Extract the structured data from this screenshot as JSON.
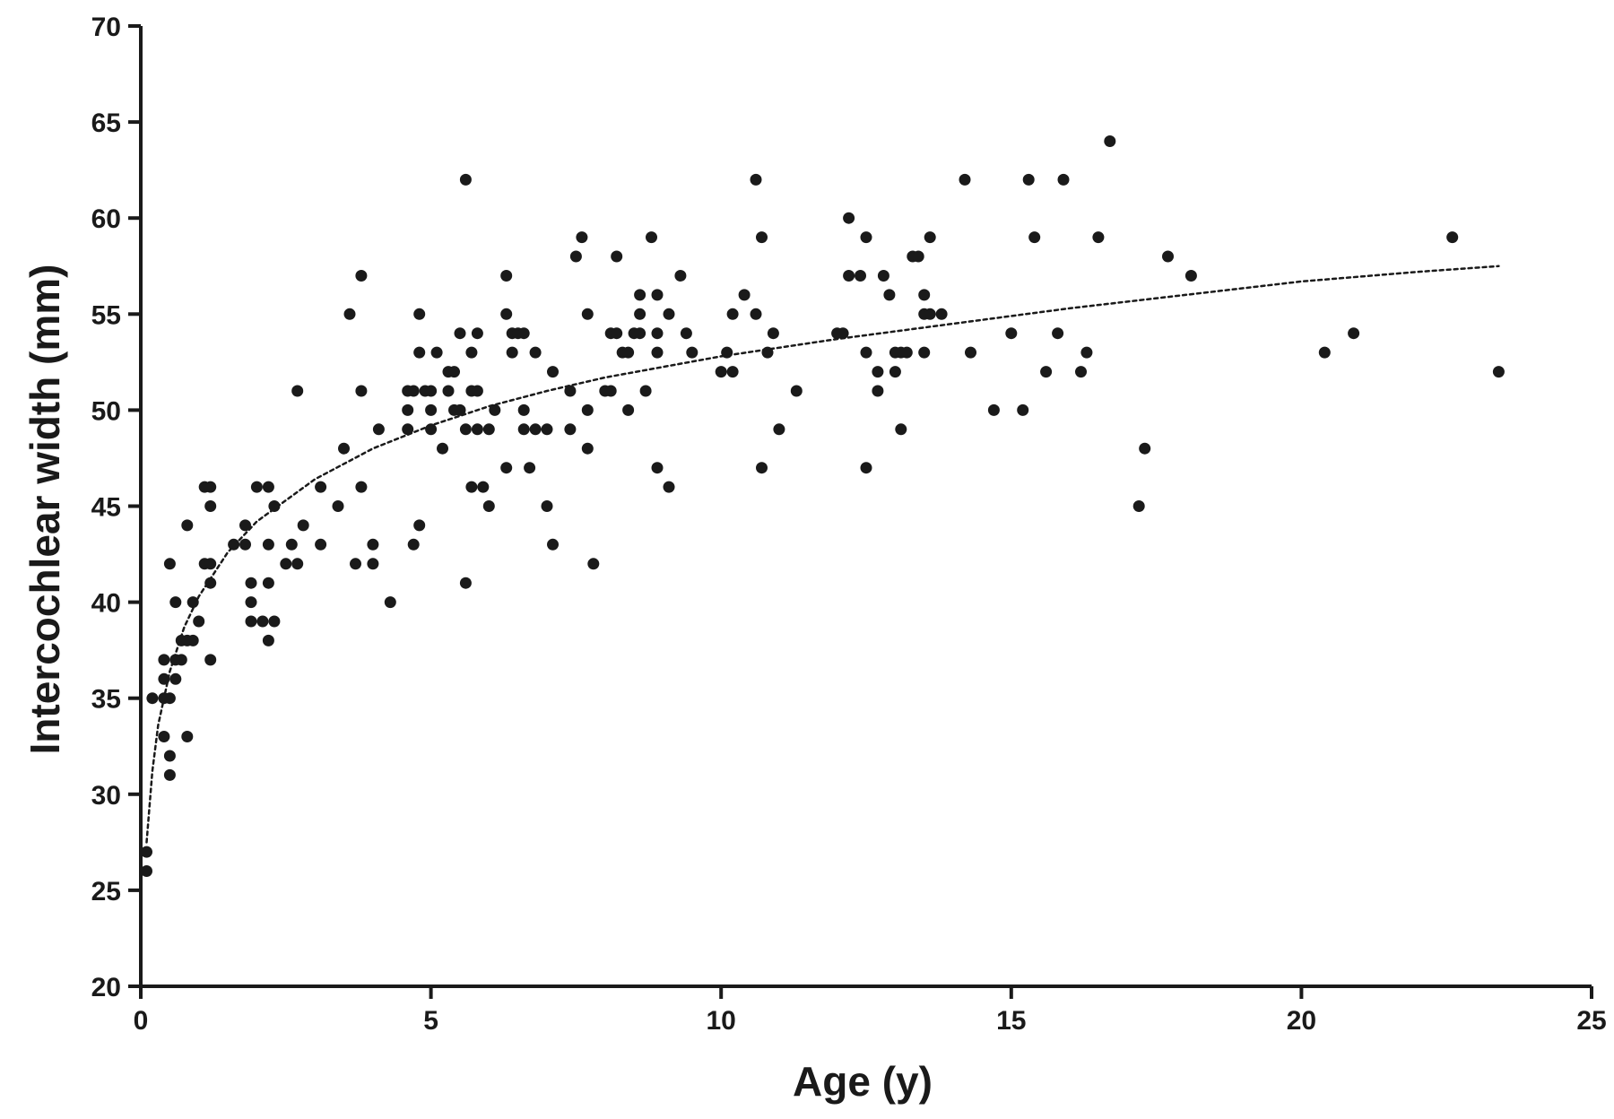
{
  "chart_data": {
    "type": "scatter",
    "title": "",
    "xlabel": "Age (y)",
    "ylabel": "Intercochlear width (mm)",
    "xlim": [
      0,
      25
    ],
    "ylim": [
      20,
      70
    ],
    "x_ticks": [
      0,
      5,
      10,
      15,
      20,
      25
    ],
    "y_ticks": [
      20,
      25,
      30,
      35,
      40,
      45,
      50,
      55,
      60,
      65,
      70
    ],
    "x_tick_labels": [
      "0",
      "5",
      "10",
      "15",
      "20",
      "25"
    ],
    "y_tick_labels": [
      "20",
      "25",
      "30",
      "35",
      "40",
      "45",
      "50",
      "55",
      "60",
      "65",
      "70"
    ],
    "grid": false,
    "colors": {
      "points": "#1a1a1a",
      "axes": "#1a1a1a",
      "trend": "#1a1a1a"
    },
    "series": [
      {
        "points": [
          [
            0.1,
            27
          ],
          [
            0.1,
            26
          ],
          [
            0.2,
            35
          ],
          [
            0.4,
            35
          ],
          [
            0.4,
            33
          ],
          [
            0.4,
            36
          ],
          [
            0.4,
            37
          ],
          [
            0.5,
            42
          ],
          [
            0.5,
            35
          ],
          [
            0.5,
            32
          ],
          [
            0.5,
            31
          ],
          [
            0.6,
            40
          ],
          [
            0.6,
            37
          ],
          [
            0.6,
            36
          ],
          [
            0.7,
            37
          ],
          [
            0.7,
            38
          ],
          [
            0.8,
            44
          ],
          [
            0.8,
            33
          ],
          [
            0.8,
            38
          ],
          [
            0.9,
            38
          ],
          [
            0.9,
            40
          ],
          [
            1.0,
            39
          ],
          [
            1.1,
            42
          ],
          [
            1.1,
            46
          ],
          [
            1.2,
            46
          ],
          [
            1.2,
            45
          ],
          [
            1.2,
            42
          ],
          [
            1.2,
            41
          ],
          [
            1.2,
            37
          ],
          [
            1.6,
            43
          ],
          [
            1.8,
            44
          ],
          [
            1.8,
            43
          ],
          [
            1.9,
            41
          ],
          [
            1.9,
            40
          ],
          [
            1.9,
            39
          ],
          [
            2.0,
            46
          ],
          [
            2.1,
            39
          ],
          [
            2.2,
            46
          ],
          [
            2.2,
            43
          ],
          [
            2.2,
            41
          ],
          [
            2.2,
            38
          ],
          [
            2.3,
            45
          ],
          [
            2.3,
            39
          ],
          [
            2.5,
            42
          ],
          [
            2.6,
            43
          ],
          [
            2.7,
            51
          ],
          [
            2.7,
            42
          ],
          [
            2.8,
            44
          ],
          [
            3.1,
            46
          ],
          [
            3.1,
            43
          ],
          [
            3.4,
            45
          ],
          [
            3.5,
            48
          ],
          [
            3.6,
            55
          ],
          [
            3.7,
            42
          ],
          [
            3.8,
            57
          ],
          [
            3.8,
            51
          ],
          [
            3.8,
            46
          ],
          [
            4.0,
            43
          ],
          [
            4.0,
            42
          ],
          [
            4.1,
            49
          ],
          [
            4.3,
            40
          ],
          [
            4.6,
            51
          ],
          [
            4.6,
            50
          ],
          [
            4.6,
            49
          ],
          [
            4.7,
            51
          ],
          [
            4.7,
            43
          ],
          [
            4.8,
            55
          ],
          [
            4.8,
            53
          ],
          [
            4.8,
            44
          ],
          [
            4.9,
            51
          ],
          [
            5.0,
            51
          ],
          [
            5.0,
            50
          ],
          [
            5.0,
            49
          ],
          [
            5.1,
            53
          ],
          [
            5.2,
            48
          ],
          [
            5.3,
            52
          ],
          [
            5.3,
            51
          ],
          [
            5.4,
            52
          ],
          [
            5.4,
            50
          ],
          [
            5.5,
            54
          ],
          [
            5.5,
            50
          ],
          [
            5.6,
            49
          ],
          [
            5.6,
            62
          ],
          [
            5.6,
            41
          ],
          [
            5.7,
            53
          ],
          [
            5.7,
            51
          ],
          [
            5.7,
            46
          ],
          [
            5.8,
            54
          ],
          [
            5.8,
            49
          ],
          [
            5.8,
            51
          ],
          [
            5.9,
            46
          ],
          [
            6.0,
            45
          ],
          [
            6.0,
            49
          ],
          [
            6.1,
            50
          ],
          [
            6.3,
            57
          ],
          [
            6.3,
            55
          ],
          [
            6.3,
            47
          ],
          [
            6.4,
            54
          ],
          [
            6.4,
            53
          ],
          [
            6.5,
            54
          ],
          [
            6.6,
            54
          ],
          [
            6.6,
            50
          ],
          [
            6.6,
            49
          ],
          [
            6.7,
            47
          ],
          [
            6.8,
            53
          ],
          [
            6.8,
            49
          ],
          [
            7.0,
            49
          ],
          [
            7.0,
            45
          ],
          [
            7.1,
            52
          ],
          [
            7.1,
            43
          ],
          [
            7.4,
            51
          ],
          [
            7.4,
            49
          ],
          [
            7.5,
            58
          ],
          [
            7.6,
            59
          ],
          [
            7.7,
            55
          ],
          [
            7.7,
            50
          ],
          [
            7.7,
            48
          ],
          [
            7.8,
            42
          ],
          [
            8.0,
            51
          ],
          [
            8.1,
            54
          ],
          [
            8.1,
            51
          ],
          [
            8.2,
            58
          ],
          [
            8.2,
            54
          ],
          [
            8.3,
            53
          ],
          [
            8.4,
            53
          ],
          [
            8.4,
            50
          ],
          [
            8.5,
            54
          ],
          [
            8.6,
            56
          ],
          [
            8.6,
            55
          ],
          [
            8.6,
            54
          ],
          [
            8.7,
            51
          ],
          [
            8.8,
            59
          ],
          [
            8.9,
            56
          ],
          [
            8.9,
            54
          ],
          [
            8.9,
            53
          ],
          [
            8.9,
            47
          ],
          [
            9.1,
            55
          ],
          [
            9.1,
            46
          ],
          [
            9.3,
            57
          ],
          [
            9.4,
            54
          ],
          [
            9.5,
            53
          ],
          [
            10.0,
            52
          ],
          [
            10.1,
            53
          ],
          [
            10.2,
            55
          ],
          [
            10.2,
            52
          ],
          [
            10.4,
            56
          ],
          [
            10.6,
            62
          ],
          [
            10.6,
            55
          ],
          [
            10.7,
            59
          ],
          [
            10.7,
            47
          ],
          [
            10.8,
            53
          ],
          [
            10.9,
            54
          ],
          [
            11.0,
            49
          ],
          [
            11.3,
            51
          ],
          [
            12.0,
            54
          ],
          [
            12.1,
            54
          ],
          [
            12.2,
            60
          ],
          [
            12.2,
            57
          ],
          [
            12.4,
            57
          ],
          [
            12.5,
            59
          ],
          [
            12.5,
            53
          ],
          [
            12.5,
            47
          ],
          [
            12.7,
            52
          ],
          [
            12.7,
            51
          ],
          [
            12.8,
            57
          ],
          [
            12.9,
            56
          ],
          [
            13.0,
            53
          ],
          [
            13.0,
            52
          ],
          [
            13.1,
            53
          ],
          [
            13.1,
            49
          ],
          [
            13.2,
            53
          ],
          [
            13.3,
            58
          ],
          [
            13.4,
            58
          ],
          [
            13.5,
            56
          ],
          [
            13.5,
            55
          ],
          [
            13.5,
            53
          ],
          [
            13.6,
            59
          ],
          [
            13.6,
            55
          ],
          [
            13.8,
            55
          ],
          [
            14.2,
            62
          ],
          [
            14.3,
            53
          ],
          [
            14.7,
            50
          ],
          [
            15.0,
            54
          ],
          [
            15.2,
            50
          ],
          [
            15.3,
            62
          ],
          [
            15.4,
            59
          ],
          [
            15.6,
            52
          ],
          [
            15.8,
            54
          ],
          [
            15.9,
            62
          ],
          [
            16.2,
            52
          ],
          [
            16.3,
            53
          ],
          [
            16.5,
            59
          ],
          [
            16.7,
            64
          ],
          [
            17.2,
            45
          ],
          [
            17.3,
            48
          ],
          [
            17.7,
            58
          ],
          [
            18.1,
            57
          ],
          [
            20.4,
            53
          ],
          [
            20.9,
            54
          ],
          [
            22.6,
            59
          ],
          [
            23.4,
            52
          ]
        ]
      }
    ],
    "trend_line": {
      "style": "dotted",
      "x": [
        0.1,
        0.2,
        0.3,
        0.5,
        0.75,
        1,
        1.5,
        2,
        3,
        4,
        5,
        6,
        7,
        8,
        10,
        12,
        14,
        16,
        18,
        20,
        22,
        23.4
      ],
      "y": [
        27.5,
        31.2,
        33.6,
        36.4,
        38.7,
        40.3,
        42.6,
        44.2,
        46.4,
        48.0,
        49.2,
        50.2,
        51.0,
        51.7,
        52.8,
        53.7,
        54.5,
        55.3,
        56.0,
        56.7,
        57.2,
        57.5
      ]
    }
  }
}
